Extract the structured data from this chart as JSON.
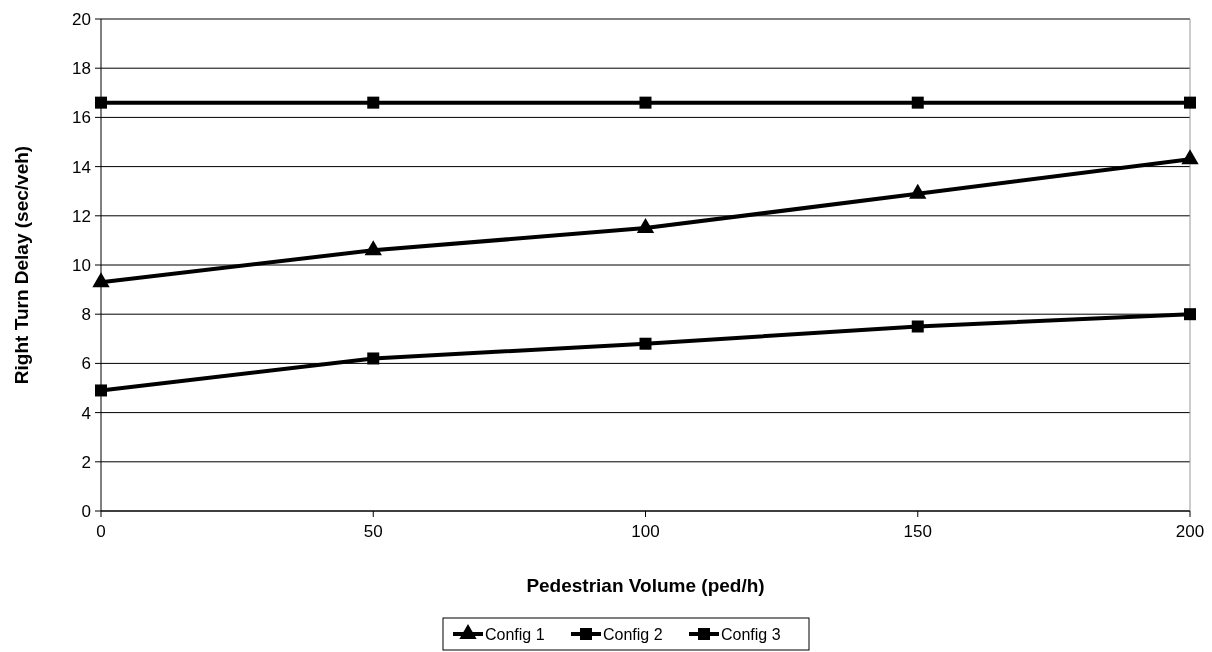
{
  "chart_data": {
    "type": "line",
    "xlabel": "Pedestrian Volume (ped/h)",
    "ylabel": "Right Turn Delay (sec/veh)",
    "x": [
      0,
      50,
      100,
      150,
      200
    ],
    "xlim": [
      0,
      200
    ],
    "xticks": [
      0,
      50,
      100,
      150,
      200
    ],
    "ylim": [
      0,
      20
    ],
    "yticks": [
      0,
      2,
      4,
      6,
      8,
      10,
      12,
      14,
      16,
      18,
      20
    ],
    "grid": "y",
    "legend": "bottom",
    "series": [
      {
        "name": "Config 1",
        "color": "#000000",
        "marker": "triangle",
        "values": [
          9.3,
          10.6,
          11.5,
          12.9,
          14.3
        ]
      },
      {
        "name": "Config 2",
        "color": "#000000",
        "marker": "square",
        "values": [
          4.9,
          6.2,
          6.8,
          7.5,
          8.0
        ]
      },
      {
        "name": "Config 3",
        "color": "#000000",
        "marker": "square",
        "values": [
          16.6,
          16.6,
          16.6,
          16.6,
          16.6
        ]
      }
    ]
  }
}
